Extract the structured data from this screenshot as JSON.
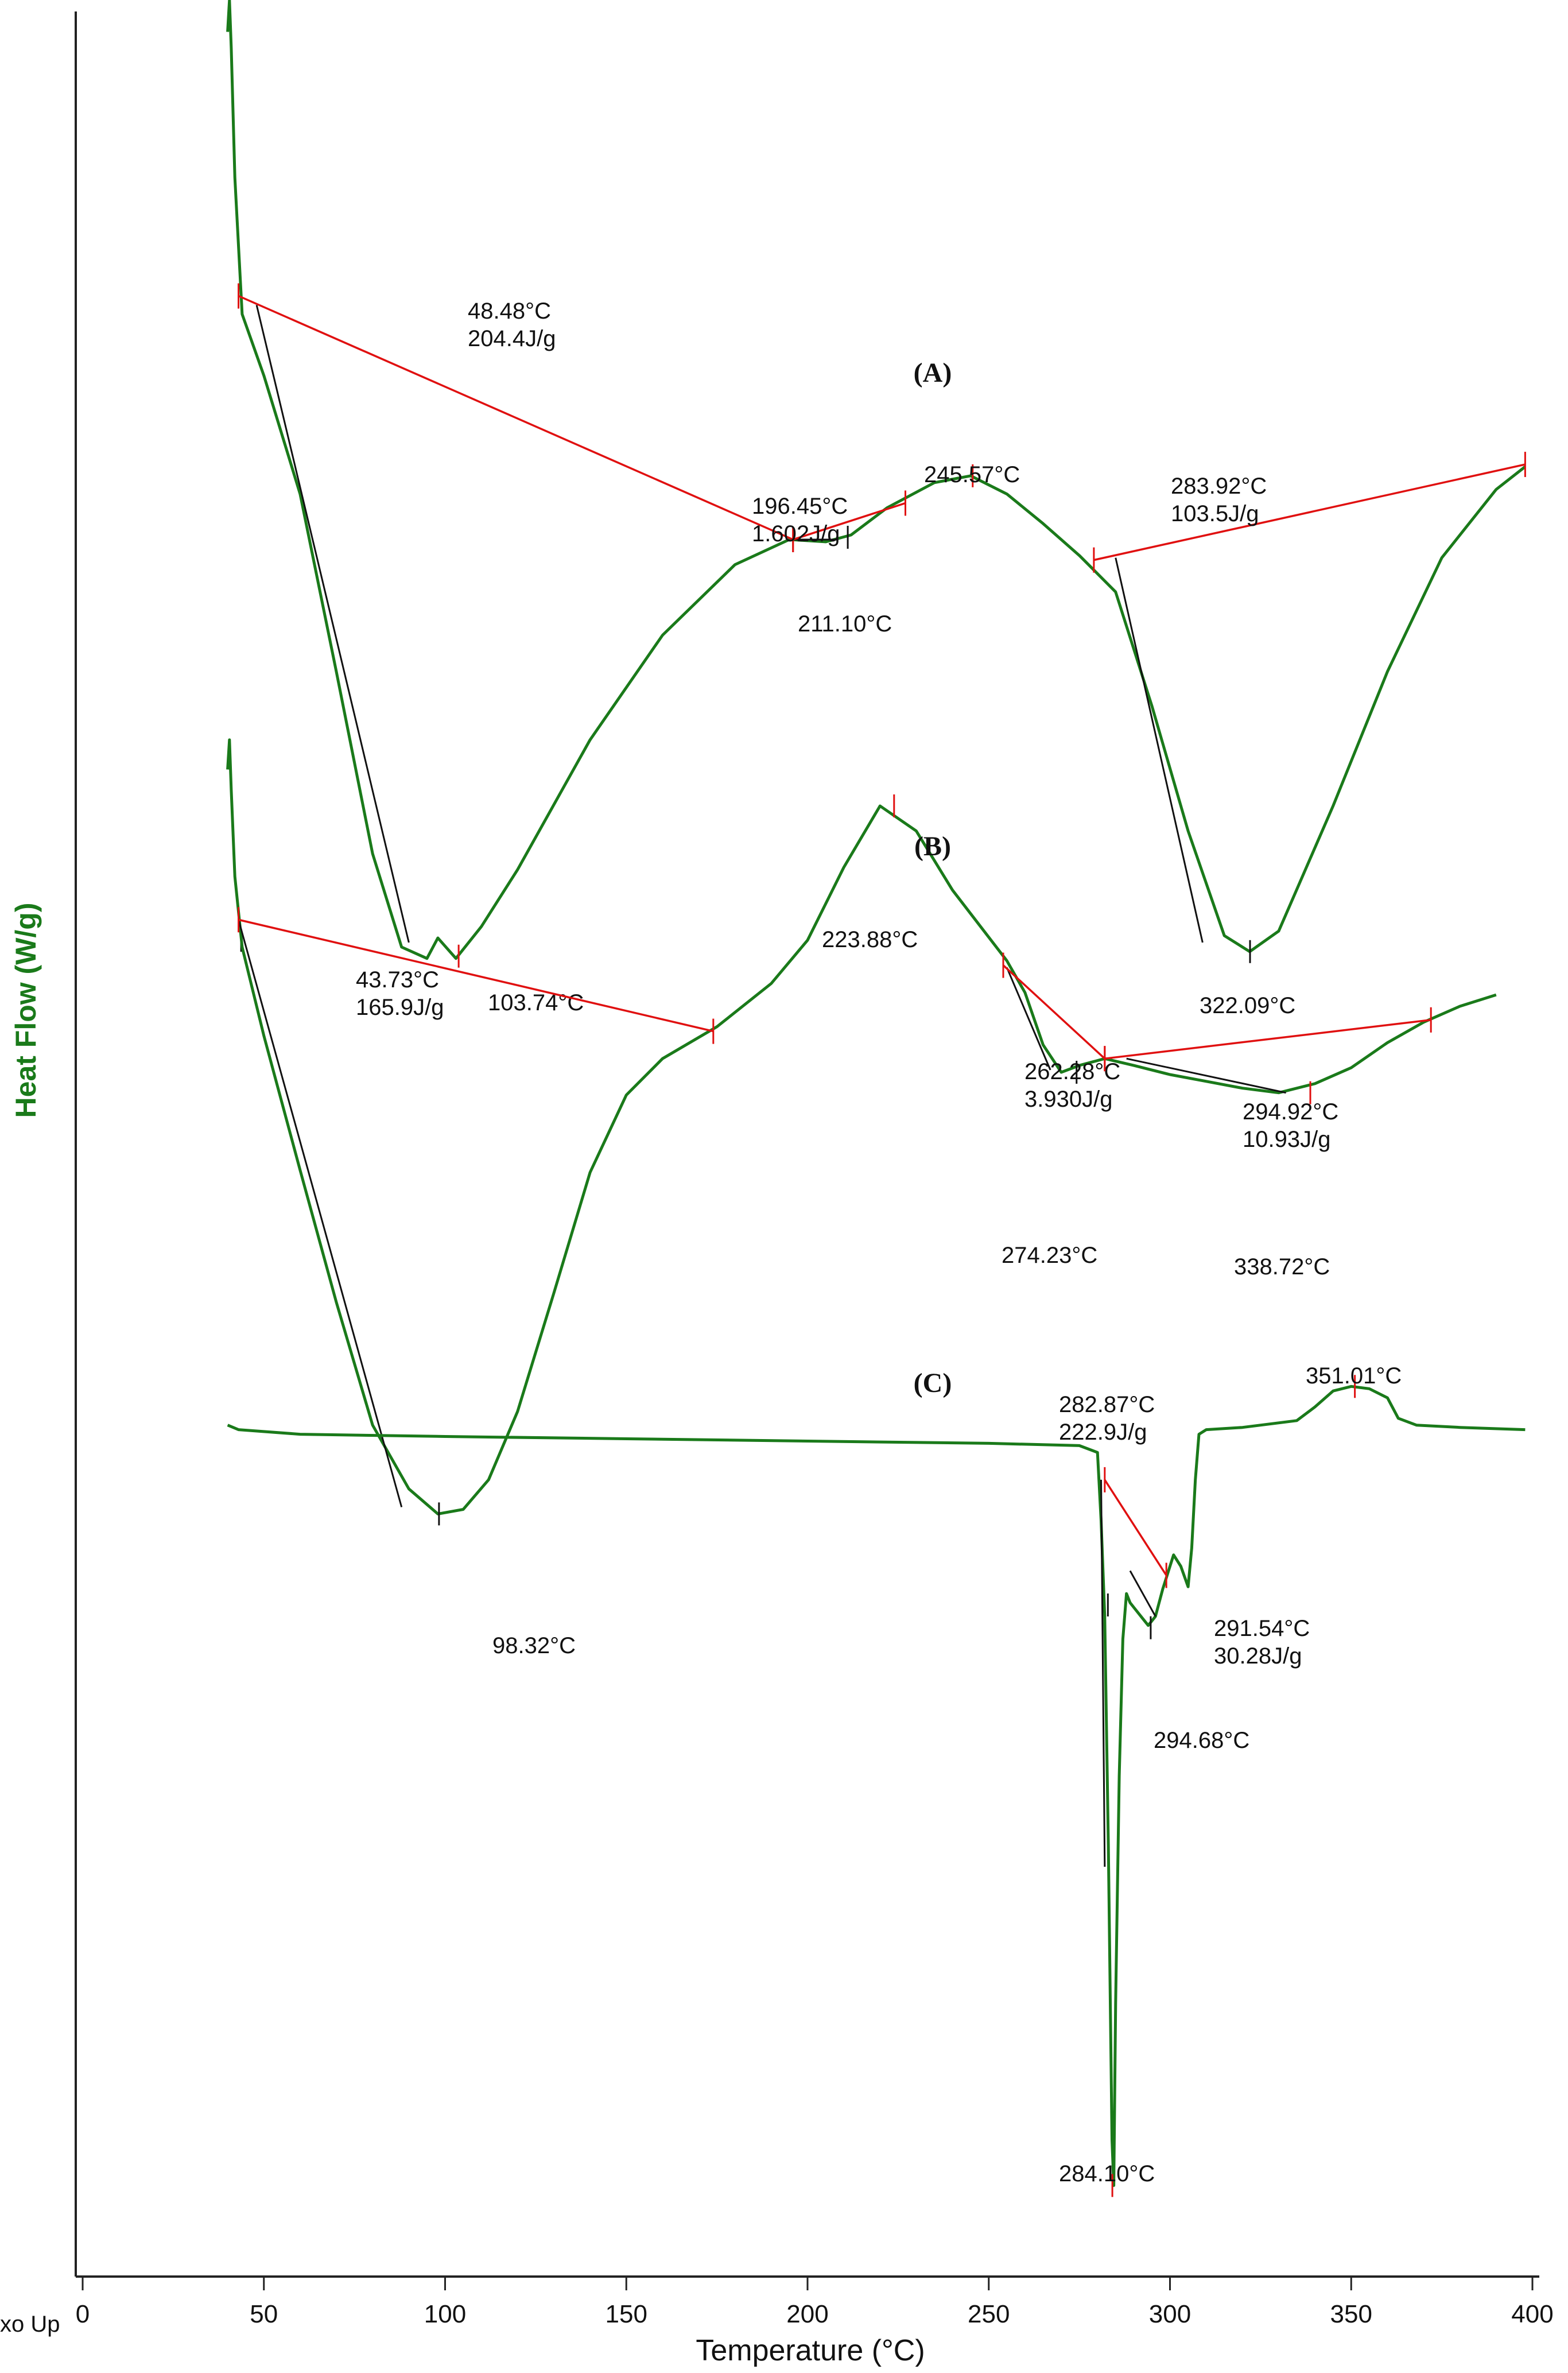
{
  "chart_data": {
    "type": "line",
    "xlabel": "Temperature (°C)",
    "ylabel": "Heat Flow (W/g)",
    "corner_text": "xo Up",
    "xlim": [
      0,
      400
    ],
    "ylim": [
      0,
      100
    ],
    "xticks": [
      0,
      50,
      100,
      150,
      200,
      250,
      300,
      350,
      400
    ],
    "colors": {
      "curve": "#1a7a1a",
      "integration": "#e01010",
      "tangent": "#111111",
      "axis": "#222222",
      "ylabel": "#1a7a1a"
    },
    "series": [
      {
        "name": "(A)",
        "points": [
          [
            40,
            98.6
          ],
          [
            40.5,
            100
          ],
          [
            41,
            97.9
          ],
          [
            42,
            92.2
          ],
          [
            44,
            86.2
          ],
          [
            50,
            83.5
          ],
          [
            60,
            78.3
          ],
          [
            70,
            70.5
          ],
          [
            80,
            62.5
          ],
          [
            88,
            58.4
          ],
          [
            95,
            57.9
          ],
          [
            98,
            58.8
          ],
          [
            103,
            57.9
          ],
          [
            110,
            59.3
          ],
          [
            120,
            61.8
          ],
          [
            140,
            67.5
          ],
          [
            160,
            72.1
          ],
          [
            180,
            75.2
          ],
          [
            195,
            76.3
          ],
          [
            205,
            76.2
          ],
          [
            212,
            76.5
          ],
          [
            222,
            77.7
          ],
          [
            235,
            78.8
          ],
          [
            245,
            79.1
          ],
          [
            255,
            78.3
          ],
          [
            265,
            77.0
          ],
          [
            275,
            75.6
          ],
          [
            285,
            74.0
          ],
          [
            295,
            69.0
          ],
          [
            305,
            63.5
          ],
          [
            315,
            58.9
          ],
          [
            322,
            58.2
          ],
          [
            330,
            59.1
          ],
          [
            345,
            64.6
          ],
          [
            360,
            70.5
          ],
          [
            375,
            75.5
          ],
          [
            390,
            78.5
          ],
          [
            398,
            79.5
          ]
        ],
        "peaks": [
          {
            "label_lines": [
              "43.73°C",
              "165.9J/g"
            ],
            "x": 43.73,
            "y": 58.7
          },
          {
            "label_lines": [
              "103.74°C"
            ],
            "x": 103.74,
            "y": 58.0
          },
          {
            "label_lines": [
              "211.10°C"
            ],
            "x": 211.1,
            "y": 76.4
          },
          {
            "label_lines": [
              "245.57°C"
            ],
            "x": 245.57,
            "y": 79.1
          },
          {
            "label_lines": [
              "322.09°C"
            ],
            "x": 322.09,
            "y": 58.2
          }
        ],
        "integrations": [
          {
            "label_lines": [
              "48.48°C",
              "204.4J/g"
            ],
            "from": [
              43,
              87.0
            ],
            "to": [
              196,
              76.3
            ]
          },
          {
            "label_lines": [
              "196.45°C",
              "1.602J/g"
            ],
            "from": [
              196,
              76.3
            ],
            "to": [
              227,
              77.9
            ]
          },
          {
            "label_lines": [
              "283.92°C",
              "103.5J/g"
            ],
            "from": [
              279,
              75.4
            ],
            "to": [
              398,
              79.6
            ]
          }
        ],
        "onsets": [
          [
            [
              48,
              86.6
            ],
            [
              90,
              58.6
            ]
          ],
          [
            [
              196,
              76.3
            ],
            [
              208,
              76.3
            ]
          ],
          [
            [
              285,
              75.5
            ],
            [
              309,
              58.6
            ]
          ]
        ]
      },
      {
        "name": "(B)",
        "points": [
          [
            40,
            66.2
          ],
          [
            40.5,
            67.5
          ],
          [
            41,
            65.3
          ],
          [
            42,
            61.5
          ],
          [
            44,
            58.4
          ],
          [
            50,
            54.5
          ],
          [
            60,
            48.6
          ],
          [
            70,
            42.8
          ],
          [
            80,
            37.4
          ],
          [
            90,
            34.6
          ],
          [
            98,
            33.5
          ],
          [
            105,
            33.7
          ],
          [
            112,
            35.0
          ],
          [
            120,
            38.0
          ],
          [
            130,
            43.2
          ],
          [
            140,
            48.5
          ],
          [
            150,
            51.9
          ],
          [
            160,
            53.5
          ],
          [
            175,
            54.9
          ],
          [
            190,
            56.8
          ],
          [
            200,
            58.7
          ],
          [
            210,
            61.9
          ],
          [
            220,
            64.6
          ],
          [
            230,
            63.5
          ],
          [
            240,
            60.9
          ],
          [
            255,
            57.8
          ],
          [
            260,
            56.4
          ],
          [
            265,
            54.1
          ],
          [
            270,
            52.9
          ],
          [
            275,
            53.2
          ],
          [
            282,
            53.5
          ],
          [
            290,
            53.2
          ],
          [
            300,
            52.8
          ],
          [
            310,
            52.5
          ],
          [
            320,
            52.2
          ],
          [
            330,
            52.0
          ],
          [
            340,
            52.4
          ],
          [
            350,
            53.1
          ],
          [
            360,
            54.2
          ],
          [
            370,
            55.1
          ],
          [
            380,
            55.8
          ],
          [
            390,
            56.3
          ]
        ],
        "peaks": [
          {
            "label_lines": [
              "98.32°C"
            ],
            "x": 98.32,
            "y": 33.5
          },
          {
            "label_lines": [
              "223.88°C"
            ],
            "x": 223.88,
            "y": 64.6
          },
          {
            "label_lines": [
              "274.23°C"
            ],
            "x": 274.23,
            "y": 52.9
          },
          {
            "label_lines": [
              "338.72°C"
            ],
            "x": 338.72,
            "y": 52.0
          }
        ],
        "integrations": [
          {
            "label_lines": [
              "262.28°C",
              "3.930J/g"
            ],
            "from": [
              254,
              57.6
            ],
            "to": [
              282,
              53.5
            ]
          },
          {
            "label_lines": [
              "294.92°C",
              "10.93J/g"
            ],
            "from": [
              282,
              53.5
            ],
            "to": [
              372,
              55.2
            ]
          }
        ],
        "baselines": [
          [
            [
              43,
              59.6
            ],
            [
              174,
              54.7
            ]
          ]
        ],
        "onsets": [
          [
            [
              43,
              59.6
            ],
            [
              88,
              33.8
            ]
          ],
          [
            [
              255,
              57.5
            ],
            [
              267,
              53.0
            ]
          ],
          [
            [
              288,
              53.5
            ],
            [
              332,
              52.0
            ]
          ]
        ]
      },
      {
        "name": "(C)",
        "points": [
          [
            40,
            37.4
          ],
          [
            43,
            37.2
          ],
          [
            60,
            37.0
          ],
          [
            100,
            36.9
          ],
          [
            150,
            36.8
          ],
          [
            200,
            36.7
          ],
          [
            250,
            36.6
          ],
          [
            275,
            36.5
          ],
          [
            280,
            36.2
          ],
          [
            281,
            33.2
          ],
          [
            282,
            29.0
          ],
          [
            283,
            19.0
          ],
          [
            284,
            6.0
          ],
          [
            284.5,
            4.0
          ],
          [
            285,
            12.0
          ],
          [
            286,
            22.0
          ],
          [
            287,
            28.0
          ],
          [
            288,
            30.0
          ],
          [
            289,
            29.6
          ],
          [
            290,
            29.4
          ],
          [
            292,
            29.0
          ],
          [
            294,
            28.6
          ],
          [
            296,
            29.0
          ],
          [
            298,
            30.2
          ],
          [
            301,
            31.7
          ],
          [
            303,
            31.2
          ],
          [
            305,
            30.3
          ],
          [
            306,
            32.0
          ],
          [
            307,
            35.0
          ],
          [
            308,
            37.0
          ],
          [
            310,
            37.2
          ],
          [
            320,
            37.3
          ],
          [
            335,
            37.6
          ],
          [
            340,
            38.2
          ],
          [
            345,
            38.9
          ],
          [
            350,
            39.1
          ],
          [
            355,
            39.0
          ],
          [
            360,
            38.6
          ],
          [
            363,
            37.7
          ],
          [
            368,
            37.4
          ],
          [
            380,
            37.3
          ],
          [
            398,
            37.2
          ]
        ],
        "peaks": [
          {
            "label_lines": [
              "282.87°C",
              "222.9J/g"
            ],
            "x": 282.87,
            "y": 29.5
          },
          {
            "label_lines": [
              "284.10°C"
            ],
            "x": 284.1,
            "y": 4.0
          },
          {
            "label_lines": [
              "294.68°C"
            ],
            "x": 294.68,
            "y": 28.5
          },
          {
            "label_lines": [
              "351.01°C"
            ],
            "x": 351.01,
            "y": 39.1
          }
        ],
        "integrations": [
          {
            "label_lines": [
              "291.54°C",
              "30.28J/g"
            ],
            "from": [
              282,
              35.0
            ],
            "to": [
              299,
              30.8
            ]
          }
        ],
        "onsets": [
          [
            [
              281,
              35.0
            ],
            [
              282,
              18.0
            ]
          ],
          [
            [
              289,
              31.0
            ],
            [
              296,
              29.0
            ]
          ]
        ]
      }
    ]
  }
}
